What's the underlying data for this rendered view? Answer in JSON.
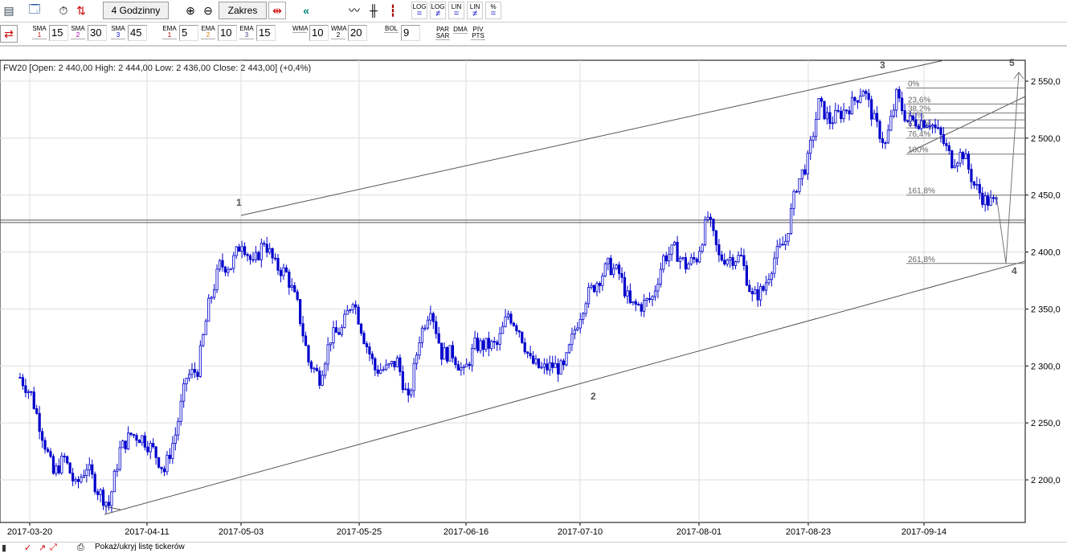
{
  "toolbar1": {
    "timeframe": "4 Godzinny",
    "range": "Zakres",
    "scale_buttons": [
      {
        "top": "LOG",
        "bottom": "="
      },
      {
        "top": "LOG",
        "bottom": "≠"
      },
      {
        "top": "LIN",
        "bottom": "="
      },
      {
        "top": "LIN",
        "bottom": "≠"
      },
      {
        "top": "%",
        "bottom": "="
      }
    ]
  },
  "toolbar2": {
    "indicators": [
      {
        "name": "SMA",
        "n": "1",
        "value": "15",
        "color": "#c00000"
      },
      {
        "name": "SMA",
        "n": "2",
        "value": "30",
        "color": "#a000a0"
      },
      {
        "name": "SMA",
        "n": "3",
        "value": "45",
        "color": "#0000c0"
      },
      {
        "name": "EMA",
        "n": "1",
        "value": "5",
        "color": "#c00000"
      },
      {
        "name": "EMA",
        "n": "2",
        "value": "10",
        "color": "#d07000"
      },
      {
        "name": "EMA",
        "n": "3",
        "value": "15",
        "color": "#404080"
      },
      {
        "name": "WMA",
        "n": "",
        "value": "10",
        "color": "#000"
      },
      {
        "name": "WMA",
        "n": "2",
        "value": "20",
        "color": "#000"
      },
      {
        "name": "BOL",
        "n": "",
        "value": "9",
        "color": "#000"
      }
    ],
    "extra": [
      {
        "top": "PAR",
        "bottom": "SAR"
      },
      {
        "top": "DMA",
        "bottom": ""
      },
      {
        "top": "PIV",
        "bottom": "PTS"
      }
    ]
  },
  "status": {
    "text": "Pokaż/ukryj listę tickerów"
  },
  "chart_data": {
    "type": "candlestick",
    "title": "FW20 [Open: 2 440,00  High: 2 444,00  Low: 2 436,00  Close: 2 443,00] (+0,4%)",
    "ylim": [
      2170,
      2575
    ],
    "y_ticks": [
      "2 200,0",
      "2 250,0",
      "2 300,0",
      "2 350,0",
      "2 400,0",
      "2 450,0",
      "2 500,0",
      "2 550,0"
    ],
    "y_tick_values": [
      2200,
      2250,
      2300,
      2350,
      2400,
      2450,
      2500,
      2550
    ],
    "x_ticks": [
      "2017-03-20",
      "2017-04-11",
      "2017-05-03",
      "2017-05-25",
      "2017-06-16",
      "2017-07-10",
      "2017-08-01",
      "2017-08-23",
      "2017-09-14"
    ],
    "grid": true,
    "approx_close": [
      2290,
      2275,
      2240,
      2205,
      2219,
      2194,
      2212,
      2191,
      2178,
      2226,
      2240,
      2237,
      2226,
      2208,
      2240,
      2290,
      2297,
      2353,
      2388,
      2388,
      2410,
      2388,
      2410,
      2388,
      2381,
      2353,
      2304,
      2290,
      2325,
      2332,
      2360,
      2325,
      2297,
      2297,
      2304,
      2268,
      2325,
      2353,
      2311,
      2311,
      2293,
      2318,
      2318,
      2318,
      2346,
      2332,
      2304,
      2297,
      2300,
      2297,
      2332,
      2360,
      2374,
      2388,
      2381,
      2353,
      2353,
      2360,
      2395,
      2402,
      2388,
      2395,
      2431,
      2395,
      2395,
      2395,
      2360,
      2367,
      2395,
      2410,
      2459,
      2480,
      2530,
      2515,
      2522,
      2530,
      2544,
      2515,
      2494,
      2537,
      2515,
      2515,
      2515,
      2501,
      2480,
      2487,
      2459,
      2445,
      2443
    ],
    "candle_color": "#0000cc",
    "horizontal_line": 2428,
    "wave_labels": [
      "1",
      "2",
      "3",
      "4",
      "5"
    ],
    "fibonacci": {
      "levels": [
        "0%",
        "23,6%",
        "38,2%",
        "50%",
        "61,8%",
        "76,4%",
        "100%",
        "161,8%",
        "261,8%"
      ],
      "prices": [
        2544,
        2530,
        2522,
        2516,
        2509,
        2500,
        2486,
        2450,
        2390
      ]
    }
  }
}
